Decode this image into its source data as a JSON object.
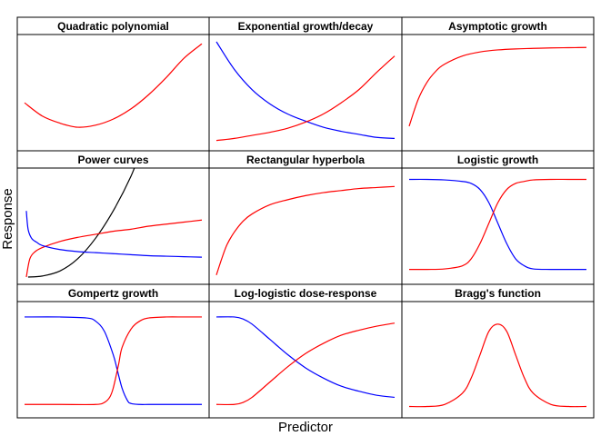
{
  "figure": {
    "xlabel": "Predictor",
    "ylabel": "Response"
  },
  "chart_data": [
    {
      "type": "line",
      "title": "Quadratic polynomial",
      "series": [
        {
          "color": "#ff0000",
          "x": [
            0,
            0.1,
            0.2,
            0.3,
            0.4,
            0.5,
            0.6,
            0.7,
            0.8,
            0.9,
            1.0
          ],
          "y": [
            0.4,
            0.27,
            0.2,
            0.16,
            0.18,
            0.24,
            0.34,
            0.48,
            0.65,
            0.84,
            0.98
          ]
        }
      ]
    },
    {
      "type": "line",
      "title": "Exponential growth/decay",
      "series": [
        {
          "color": "#0000ff",
          "x": [
            0,
            0.1,
            0.2,
            0.3,
            0.4,
            0.5,
            0.6,
            0.7,
            0.8,
            0.9,
            1.0
          ],
          "y": [
            1.0,
            0.73,
            0.53,
            0.39,
            0.29,
            0.22,
            0.16,
            0.12,
            0.09,
            0.06,
            0.05
          ]
        },
        {
          "color": "#ff0000",
          "x": [
            0,
            0.1,
            0.2,
            0.3,
            0.4,
            0.5,
            0.6,
            0.7,
            0.8,
            0.9,
            1.0
          ],
          "y": [
            0.03,
            0.05,
            0.08,
            0.11,
            0.15,
            0.21,
            0.29,
            0.4,
            0.53,
            0.7,
            0.86
          ]
        }
      ]
    },
    {
      "type": "line",
      "title": "Asymptotic growth",
      "series": [
        {
          "color": "#ff0000",
          "x": [
            0,
            0.05,
            0.1,
            0.15,
            0.2,
            0.3,
            0.4,
            0.5,
            0.6,
            0.7,
            0.8,
            0.9,
            1.0
          ],
          "y": [
            0.17,
            0.43,
            0.6,
            0.71,
            0.78,
            0.86,
            0.9,
            0.92,
            0.93,
            0.935,
            0.94,
            0.942,
            0.944
          ]
        }
      ]
    },
    {
      "type": "line",
      "title": "Power curves",
      "series": [
        {
          "color": "#000000",
          "x": [
            0.02,
            0.1,
            0.2,
            0.3,
            0.4,
            0.5,
            0.6,
            0.65
          ],
          "y": [
            0.0,
            0.01,
            0.06,
            0.18,
            0.38,
            0.65,
            0.99,
            1.22
          ]
        },
        {
          "color": "#ff0000",
          "x": [
            0.01,
            0.03,
            0.06,
            0.1,
            0.2,
            0.3,
            0.4,
            0.5,
            0.6,
            0.7,
            0.8,
            0.9,
            1.0
          ],
          "y": [
            0.0,
            0.18,
            0.25,
            0.29,
            0.35,
            0.39,
            0.42,
            0.45,
            0.47,
            0.5,
            0.52,
            0.54,
            0.56
          ]
        },
        {
          "color": "#0000ff",
          "x": [
            0.01,
            0.02,
            0.04,
            0.07,
            0.1,
            0.2,
            0.3,
            0.4,
            0.5,
            0.6,
            0.7,
            0.8,
            0.9,
            1.0
          ],
          "y": [
            0.65,
            0.47,
            0.38,
            0.34,
            0.31,
            0.27,
            0.25,
            0.24,
            0.23,
            0.22,
            0.21,
            0.205,
            0.2,
            0.195
          ]
        }
      ]
    },
    {
      "type": "line",
      "title": "Rectangular hyperbola",
      "series": [
        {
          "color": "#ff0000",
          "x": [
            0,
            0.03,
            0.06,
            0.1,
            0.15,
            0.2,
            0.3,
            0.4,
            0.5,
            0.6,
            0.7,
            0.8,
            0.9,
            1.0
          ],
          "y": [
            0.02,
            0.18,
            0.32,
            0.44,
            0.55,
            0.62,
            0.71,
            0.76,
            0.8,
            0.83,
            0.85,
            0.87,
            0.88,
            0.89
          ]
        }
      ]
    },
    {
      "type": "line",
      "title": "Logistic growth",
      "series": [
        {
          "color": "#0000ff",
          "x": [
            0,
            0.1,
            0.2,
            0.3,
            0.35,
            0.4,
            0.45,
            0.5,
            0.55,
            0.6,
            0.65,
            0.7,
            0.8,
            0.9,
            1.0
          ],
          "y": [
            0.96,
            0.96,
            0.955,
            0.94,
            0.92,
            0.86,
            0.73,
            0.53,
            0.33,
            0.18,
            0.11,
            0.08,
            0.075,
            0.075,
            0.075
          ]
        },
        {
          "color": "#ff0000",
          "x": [
            0,
            0.1,
            0.2,
            0.3,
            0.35,
            0.4,
            0.45,
            0.5,
            0.55,
            0.6,
            0.65,
            0.7,
            0.8,
            0.9,
            1.0
          ],
          "y": [
            0.075,
            0.075,
            0.08,
            0.11,
            0.18,
            0.33,
            0.53,
            0.73,
            0.86,
            0.92,
            0.94,
            0.955,
            0.96,
            0.96,
            0.96
          ]
        }
      ]
    },
    {
      "type": "line",
      "title": "Gompertz growth",
      "series": [
        {
          "color": "#0000ff",
          "x": [
            0,
            0.2,
            0.35,
            0.4,
            0.45,
            0.5,
            0.52,
            0.55,
            0.58,
            0.6,
            0.65,
            0.7,
            0.8,
            0.9,
            1.0
          ],
          "y": [
            0.92,
            0.92,
            0.91,
            0.88,
            0.78,
            0.55,
            0.42,
            0.22,
            0.1,
            0.07,
            0.06,
            0.06,
            0.06,
            0.06,
            0.06
          ]
        },
        {
          "color": "#ff0000",
          "x": [
            0,
            0.2,
            0.4,
            0.45,
            0.48,
            0.5,
            0.53,
            0.55,
            0.6,
            0.65,
            0.7,
            0.8,
            0.9,
            1.0
          ],
          "y": [
            0.06,
            0.06,
            0.06,
            0.08,
            0.13,
            0.22,
            0.45,
            0.62,
            0.8,
            0.88,
            0.91,
            0.92,
            0.92,
            0.92
          ]
        }
      ]
    },
    {
      "type": "line",
      "title": "Log-logistic dose-response",
      "series": [
        {
          "color": "#0000ff",
          "x": [
            0,
            0.1,
            0.15,
            0.2,
            0.3,
            0.4,
            0.5,
            0.6,
            0.7,
            0.8,
            0.9,
            1.0
          ],
          "y": [
            0.92,
            0.92,
            0.9,
            0.85,
            0.7,
            0.55,
            0.42,
            0.32,
            0.24,
            0.19,
            0.15,
            0.13
          ]
        },
        {
          "color": "#ff0000",
          "x": [
            0,
            0.1,
            0.15,
            0.2,
            0.3,
            0.4,
            0.5,
            0.6,
            0.7,
            0.8,
            0.9,
            1.0
          ],
          "y": [
            0.06,
            0.06,
            0.08,
            0.13,
            0.28,
            0.43,
            0.56,
            0.66,
            0.74,
            0.79,
            0.83,
            0.86
          ]
        }
      ]
    },
    {
      "type": "line",
      "title": "Bragg's function",
      "series": [
        {
          "color": "#ff0000",
          "x": [
            0,
            0.1,
            0.2,
            0.3,
            0.35,
            0.4,
            0.45,
            0.5,
            0.55,
            0.6,
            0.65,
            0.7,
            0.8,
            0.9,
            1.0
          ],
          "y": [
            0.04,
            0.04,
            0.06,
            0.17,
            0.32,
            0.55,
            0.78,
            0.85,
            0.78,
            0.55,
            0.32,
            0.17,
            0.06,
            0.04,
            0.04
          ]
        }
      ]
    }
  ]
}
